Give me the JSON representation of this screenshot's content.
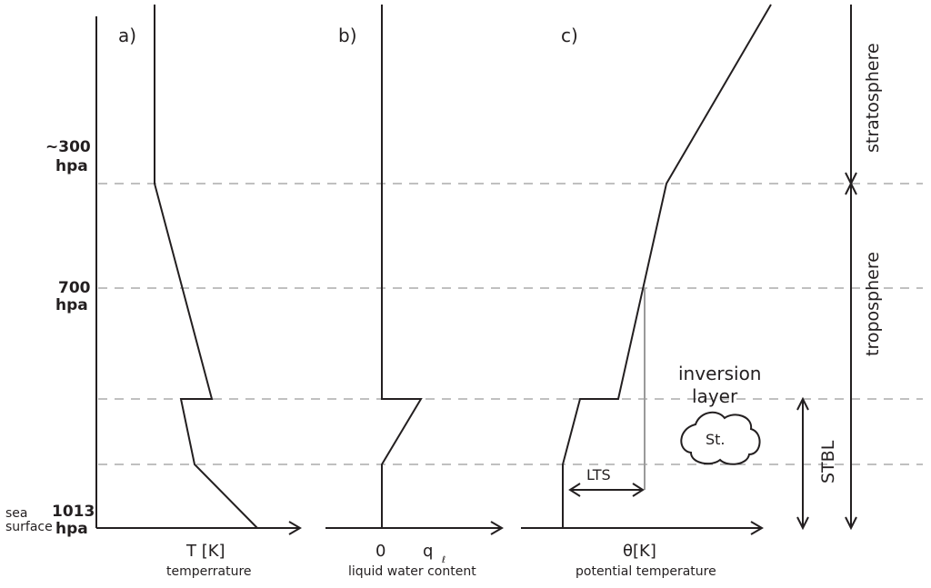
{
  "pressure_levels": {
    "top": "~300",
    "top_unit": "hpa",
    "mid": "700",
    "mid_unit": "hpa",
    "surface": "1013",
    "surface_unit": "hpa",
    "sea_line1": "sea",
    "sea_line2": "surface"
  },
  "panels": {
    "a": {
      "label": "a)",
      "axis_title": "T [K]",
      "axis_sub": "temperrature"
    },
    "b": {
      "label": "b)",
      "axis_zero": "0",
      "axis_symbol": "q",
      "axis_subscript": "ℓ",
      "axis_sub": "liquid water content"
    },
    "c": {
      "label": "c)",
      "axis_title": "θ[K]",
      "axis_sub": "potential temperature"
    }
  },
  "layers": {
    "stratosphere": "stratosphere",
    "troposphere": "troposphere",
    "stbl": "STBL"
  },
  "annotations": {
    "lts": "LTS",
    "inversion_line1": "inversion",
    "inversion_line2": "layer",
    "cloud": "St."
  },
  "colors": {
    "line": "#231f20",
    "dashed": "#808080",
    "lts_line": "#9a9a9a"
  }
}
